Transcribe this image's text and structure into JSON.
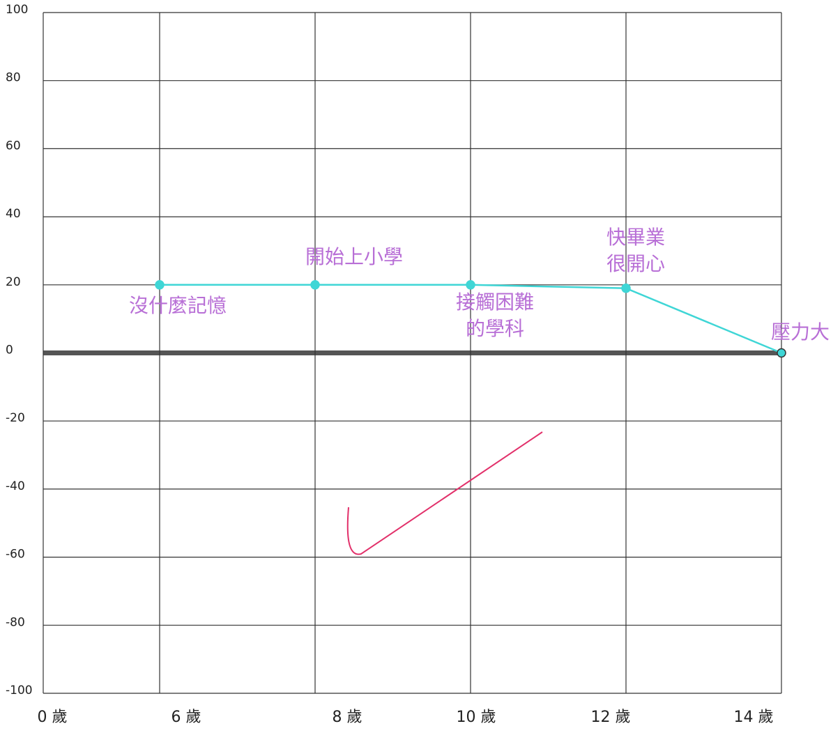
{
  "chart_data": {
    "type": "line",
    "categories": [
      "0 歲",
      "6 歲",
      "8 歲",
      "10 歲",
      "12 歲",
      "14 歲"
    ],
    "series": [
      {
        "color": "#3fd6d6",
        "values": [
          null,
          20,
          20,
          20,
          19,
          0
        ]
      }
    ],
    "annotations": [
      null,
      [
        "沒什麼記憶"
      ],
      [
        "開始上小學"
      ],
      [
        "接觸困難",
        "的學科"
      ],
      [
        "快畢業",
        "很開心"
      ],
      [
        "壓力大"
      ]
    ],
    "annotation_color": "#b86fd6",
    "ylim": [
      -100,
      100
    ],
    "yticks": [
      -100,
      -80,
      -60,
      -40,
      -20,
      0,
      20,
      40,
      60,
      80,
      100
    ],
    "grid": true
  }
}
